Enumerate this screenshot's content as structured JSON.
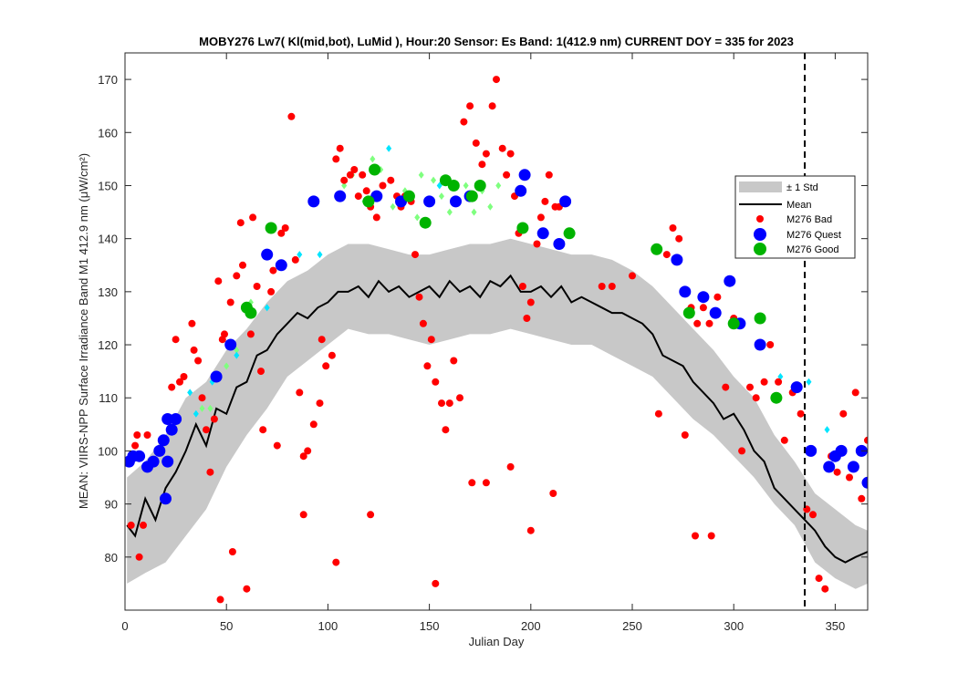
{
  "chart_data": {
    "type": "scatter",
    "title": "MOBY276   Lw7( Kl(mid,bot), LuMid ),   Hour:20 Sensor: Es Band: 1(412.9 nm)   CURRENT DOY = 335 for 2023",
    "xlabel": "Julian Day",
    "ylabel": "MEAN: VIIRS-NPP Surface Irradiance Band M1 412.9 nm (μW/cm²)",
    "xlim": [
      0,
      366
    ],
    "ylim": [
      70,
      175
    ],
    "xticks": [
      0,
      50,
      100,
      150,
      200,
      250,
      300,
      350
    ],
    "yticks": [
      80,
      90,
      100,
      110,
      120,
      130,
      140,
      150,
      160,
      170
    ],
    "grid": false,
    "legend_position": "upper-right",
    "current_doy": 335,
    "series": [
      {
        "name": "± 1 Std",
        "kind": "band",
        "color": "#c8c8c8",
        "x": [
          1,
          10,
          20,
          30,
          40,
          50,
          60,
          70,
          80,
          90,
          100,
          110,
          120,
          130,
          140,
          150,
          160,
          170,
          180,
          190,
          200,
          210,
          220,
          230,
          240,
          250,
          260,
          270,
          280,
          290,
          300,
          310,
          320,
          330,
          340,
          350,
          360,
          366
        ],
        "lower": [
          75,
          77,
          79,
          84,
          89,
          97,
          103,
          108,
          114,
          117,
          120,
          123,
          122,
          122,
          121,
          120,
          121,
          122,
          122,
          123,
          122,
          121,
          120,
          120,
          118,
          116,
          114,
          110,
          106,
          103,
          99,
          95,
          90,
          86,
          79,
          76,
          74,
          75
        ],
        "upper": [
          95,
          98,
          103,
          110,
          113,
          119,
          123,
          128,
          132,
          134,
          137,
          139,
          139,
          138,
          137,
          137,
          138,
          139,
          139,
          140,
          139,
          138,
          137,
          137,
          136,
          134,
          131,
          127,
          123,
          119,
          114,
          110,
          103,
          98,
          92,
          89,
          86,
          85
        ]
      },
      {
        "name": "Mean",
        "kind": "line",
        "color": "#000000",
        "x": [
          1,
          5,
          10,
          15,
          20,
          25,
          30,
          35,
          40,
          45,
          50,
          55,
          60,
          65,
          70,
          75,
          80,
          85,
          90,
          95,
          100,
          105,
          110,
          115,
          120,
          125,
          130,
          135,
          140,
          145,
          150,
          155,
          160,
          165,
          170,
          175,
          180,
          185,
          190,
          195,
          200,
          205,
          210,
          215,
          220,
          225,
          230,
          235,
          240,
          245,
          250,
          255,
          260,
          265,
          270,
          275,
          280,
          285,
          290,
          295,
          300,
          305,
          310,
          315,
          320,
          325,
          330,
          335,
          340,
          345,
          350,
          355,
          360,
          366
        ],
        "y": [
          86,
          84,
          91,
          87,
          93,
          96,
          100,
          105,
          101,
          108,
          107,
          112,
          113,
          118,
          119,
          122,
          124,
          126,
          125,
          127,
          128,
          130,
          130,
          131,
          129,
          132,
          130,
          131,
          129,
          130,
          131,
          129,
          132,
          130,
          131,
          129,
          132,
          131,
          133,
          130,
          130,
          131,
          129,
          131,
          128,
          129,
          128,
          127,
          126,
          126,
          125,
          124,
          122,
          118,
          117,
          116,
          113,
          111,
          109,
          106,
          107,
          104,
          100,
          98,
          93,
          91,
          89,
          87,
          85,
          82,
          80,
          79,
          80,
          81
        ]
      },
      {
        "name": "M276 Bad",
        "kind": "scatter",
        "color": "#ff0000",
        "x": [
          3,
          5,
          6,
          7,
          9,
          11,
          23,
          25,
          27,
          29,
          33,
          34,
          36,
          38,
          40,
          42,
          44,
          46,
          48,
          49,
          52,
          55,
          57,
          58,
          60,
          62,
          63,
          65,
          67,
          68,
          72,
          73,
          75,
          77,
          79,
          82,
          84,
          86,
          88,
          90,
          93,
          96,
          97,
          99,
          102,
          104,
          106,
          108,
          111,
          113,
          115,
          117,
          119,
          121,
          124,
          127,
          131,
          134,
          136,
          138,
          141,
          143,
          145,
          147,
          149,
          151,
          153,
          156,
          158,
          160,
          162,
          165,
          167,
          170,
          173,
          176,
          178,
          181,
          183,
          186,
          188,
          190,
          192,
          194,
          196,
          198,
          200,
          203,
          205,
          207,
          209,
          212,
          214,
          263,
          267,
          270,
          273,
          276,
          279,
          282,
          285,
          288,
          292,
          296,
          300,
          304,
          308,
          311,
          315,
          318,
          322,
          325,
          329,
          333,
          336,
          339,
          342,
          345,
          348,
          351,
          354,
          357,
          360,
          363,
          366,
          47,
          60,
          53,
          88,
          104,
          121,
          153,
          171,
          178,
          200,
          211,
          190,
          235,
          240,
          250,
          281,
          289
        ],
        "y": [
          86,
          101,
          103,
          80,
          86,
          103,
          112,
          121,
          113,
          114,
          124,
          119,
          117,
          110,
          104,
          96,
          106,
          132,
          121,
          122,
          128,
          133,
          143,
          135,
          127,
          122,
          144,
          131,
          115,
          104,
          130,
          134,
          101,
          141,
          142,
          163,
          136,
          111,
          99,
          100,
          105,
          109,
          121,
          116,
          118,
          155,
          157,
          151,
          152,
          153,
          148,
          152,
          149,
          146,
          144,
          150,
          151,
          148,
          146,
          148,
          147,
          137,
          129,
          124,
          116,
          121,
          113,
          109,
          104,
          109,
          117,
          110,
          162,
          165,
          158,
          154,
          156,
          165,
          170,
          157,
          152,
          156,
          148,
          141,
          131,
          125,
          128,
          139,
          144,
          147,
          152,
          146,
          146,
          107,
          137,
          142,
          140,
          103,
          127,
          124,
          127,
          124,
          129,
          112,
          125,
          100,
          112,
          110,
          113,
          120,
          113,
          102,
          111,
          107,
          89,
          88,
          76,
          74,
          99,
          96,
          107,
          95,
          111,
          91,
          102,
          72,
          74,
          81,
          88,
          79,
          88,
          75,
          94,
          94,
          85,
          92,
          97,
          131,
          131,
          133,
          84,
          84
        ]
      },
      {
        "name": "M276 Quest",
        "kind": "scatter",
        "color": "#0000ff",
        "x": [
          2,
          4,
          7,
          11,
          14,
          17,
          19,
          21,
          23,
          25,
          45,
          52,
          70,
          77,
          93,
          106,
          124,
          136,
          150,
          163,
          170,
          195,
          197,
          206,
          214,
          217,
          272,
          276,
          285,
          291,
          298,
          303,
          313,
          331,
          338,
          347,
          350,
          353,
          359,
          363,
          366,
          20,
          21
        ],
        "y": [
          98,
          99,
          99,
          97,
          98,
          100,
          102,
          106,
          104,
          106,
          114,
          120,
          137,
          135,
          147,
          148,
          148,
          147,
          147,
          147,
          148,
          149,
          152,
          141,
          139,
          147,
          136,
          130,
          129,
          126,
          132,
          124,
          120,
          112,
          100,
          97,
          99,
          100,
          97,
          100,
          94,
          91,
          98
        ]
      },
      {
        "name": "M276 Good",
        "kind": "scatter",
        "color": "#00b300",
        "x": [
          60,
          62,
          72,
          120,
          123,
          140,
          148,
          158,
          162,
          171,
          175,
          196,
          219,
          262,
          278,
          300,
          313,
          321
        ],
        "y": [
          127,
          126,
          142,
          147,
          153,
          148,
          143,
          151,
          150,
          148,
          150,
          142,
          141,
          138,
          126,
          124,
          125,
          110
        ]
      }
    ],
    "good_light_points": {
      "color": "#7fff7f",
      "x": [
        108,
        112,
        118,
        122,
        126,
        132,
        138,
        144,
        146,
        152,
        156,
        160,
        164,
        168,
        172,
        176,
        180,
        184,
        38,
        42,
        50,
        55,
        62
      ],
      "y": [
        150,
        152,
        147,
        155,
        153,
        146,
        149,
        144,
        152,
        151,
        148,
        145,
        147,
        150,
        145,
        149,
        146,
        150,
        108,
        108,
        116,
        119,
        128
      ]
    },
    "cyan_points": {
      "color": "#00e5ff",
      "x": [
        32,
        35,
        43,
        55,
        70,
        86,
        96,
        130,
        155,
        323,
        337,
        346
      ],
      "y": [
        111,
        107,
        113,
        118,
        127,
        137,
        137,
        157,
        150,
        114,
        113,
        104
      ]
    }
  }
}
